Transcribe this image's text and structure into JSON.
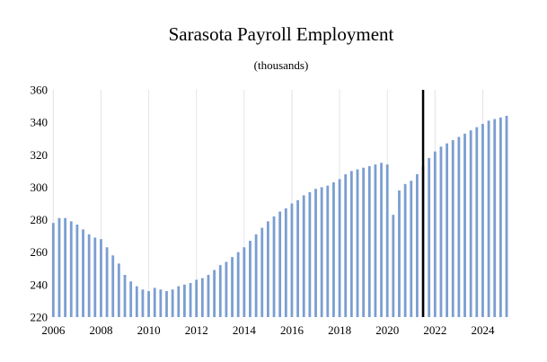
{
  "chart_data": {
    "type": "bar",
    "title": "Sarasota Payroll Employment",
    "subtitle": "(thousands)",
    "xlabel": "",
    "ylabel": "",
    "ylim": [
      220,
      360
    ],
    "yticks": [
      220,
      240,
      260,
      280,
      300,
      320,
      340,
      360
    ],
    "xticks": [
      "2006",
      "2008",
      "2010",
      "2012",
      "2014",
      "2016",
      "2018",
      "2020",
      "2022",
      "2024"
    ],
    "x_start": 2006.0,
    "x_step": 0.25,
    "grid": "vertical",
    "bar_color": "#7b9ed1",
    "vertical_line_x": 2021.5,
    "values": [
      278,
      281,
      281,
      279,
      277,
      274,
      271,
      269,
      268,
      263,
      258,
      253,
      246,
      242,
      239,
      237,
      236,
      238,
      237,
      236,
      237,
      239,
      240,
      241,
      243,
      244,
      246,
      249,
      252,
      254,
      257,
      260,
      263,
      267,
      271,
      275,
      279,
      282,
      285,
      287,
      290,
      292,
      295,
      297,
      299,
      300,
      301,
      303,
      305,
      308,
      310,
      311,
      312,
      313,
      314,
      315,
      314,
      283,
      298,
      302,
      304,
      308,
      313,
      318,
      322,
      325,
      327,
      329,
      331,
      333,
      335,
      337,
      339,
      341,
      342,
      343,
      344
    ]
  }
}
